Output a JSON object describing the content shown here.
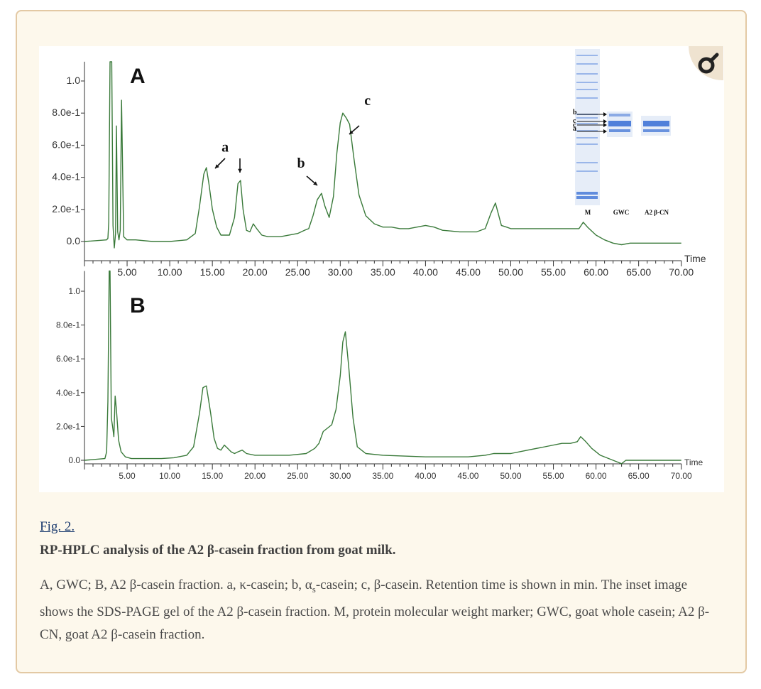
{
  "figure_label": "Fig. 2.",
  "figure_title": "RP-HPLC analysis of the A2 β-casein fraction from goat milk.",
  "caption": {
    "part1": "A, GWC; B, A2 β-casein fraction. a, κ-casein; b, α",
    "sub": "s",
    "part2": "-casein; c, β-casein. Retention time is shown in min. The inset image shows the SDS-PAGE gel of the A2 β-casein fraction. M, protein molecular weight marker; GWC, goat whole casein; A2 β-CN, goat A2 β-casein fraction."
  },
  "zoom_button": {
    "icon": "magnifier-icon"
  },
  "colors": {
    "trace": "#3a7a3a",
    "gel_band": "#3f73d6",
    "gel_bg": "#e6edf8"
  },
  "chart_data": [
    {
      "type": "line",
      "panel_label": "A",
      "xlabel": "Time",
      "xlim": [
        0,
        70
      ],
      "ylim": [
        -0.05,
        1.12
      ],
      "x_ticks": [
        5,
        10,
        15,
        20,
        25,
        30,
        35,
        40,
        45,
        50,
        55,
        60,
        65,
        70
      ],
      "x_tick_labels": [
        "5.00",
        "10.00",
        "15.00",
        "20.00",
        "25.00",
        "30.00",
        "35.00",
        "40.00",
        "45.00",
        "50.00",
        "55.00",
        "60.00",
        "65.00",
        "70.00"
      ],
      "y_ticks": [
        0,
        0.2,
        0.4,
        0.6,
        0.8,
        1.0
      ],
      "y_tick_labels": [
        "0.0",
        "2.0e-1",
        "4.0e-1",
        "6.0e-1",
        "8.0e-1",
        "1.0"
      ],
      "series": [
        {
          "x": [
            0,
            2.6,
            2.75,
            2.85,
            3.0,
            3.2,
            3.35,
            3.5,
            3.65,
            3.75,
            3.9,
            4.05,
            4.2,
            4.35,
            4.6,
            5,
            6,
            8,
            10,
            12,
            13,
            13.5,
            14,
            14.3,
            14.6,
            15,
            15.5,
            16,
            17,
            17.6,
            18,
            18.3,
            18.6,
            19,
            19.4,
            19.8,
            20.2,
            20.8,
            21.5,
            23,
            25,
            25.8,
            26.3,
            26.8,
            27.3,
            27.8,
            28.2,
            28.7,
            29.2,
            29.6,
            30,
            30.3,
            30.7,
            31.1,
            31.6,
            32.2,
            33,
            34,
            35,
            36,
            37,
            38,
            40,
            41,
            42,
            44,
            46,
            47,
            47.7,
            48.2,
            48.5,
            48.9,
            49.5,
            50,
            52,
            55,
            57,
            58,
            58.5,
            59,
            60,
            61,
            62,
            63,
            64,
            65,
            67,
            70
          ],
          "y": [
            0,
            0.01,
            0.02,
            0.12,
            1.12,
            1.12,
            0.1,
            -0.04,
            0.05,
            0.72,
            0.06,
            0.01,
            0.07,
            0.88,
            0.03,
            0.01,
            0.01,
            0,
            0,
            0.01,
            0.05,
            0.22,
            0.42,
            0.46,
            0.36,
            0.2,
            0.09,
            0.04,
            0.04,
            0.15,
            0.36,
            0.38,
            0.2,
            0.07,
            0.06,
            0.11,
            0.08,
            0.04,
            0.03,
            0.03,
            0.05,
            0.07,
            0.08,
            0.16,
            0.26,
            0.3,
            0.22,
            0.15,
            0.28,
            0.55,
            0.74,
            0.8,
            0.77,
            0.73,
            0.52,
            0.29,
            0.16,
            0.11,
            0.09,
            0.09,
            0.08,
            0.08,
            0.1,
            0.09,
            0.07,
            0.06,
            0.06,
            0.08,
            0.18,
            0.24,
            0.18,
            0.1,
            0.09,
            0.08,
            0.08,
            0.08,
            0.08,
            0.08,
            0.12,
            0.09,
            0.04,
            0.01,
            -0.01,
            -0.02,
            -0.01,
            -0.01,
            -0.01,
            -0.01
          ]
        }
      ],
      "annotations": [
        {
          "text": "a",
          "x": 16.5,
          "y": 0.56
        },
        {
          "text": "b",
          "x": 25.4,
          "y": 0.46
        },
        {
          "text": "c",
          "x": 33.2,
          "y": 0.85
        }
      ],
      "inset": {
        "type": "gel",
        "lanes": [
          "M",
          "GWC",
          "A2 β-CN"
        ],
        "band_labels": [
          "b",
          "c",
          "c",
          "a"
        ]
      }
    },
    {
      "type": "line",
      "panel_label": "B",
      "xlabel": "Time",
      "xlim": [
        0,
        70
      ],
      "ylim": [
        -0.05,
        1.12
      ],
      "x_ticks": [
        5,
        10,
        15,
        20,
        25,
        30,
        35,
        40,
        45,
        50,
        55,
        60,
        65,
        70
      ],
      "x_tick_labels": [
        "5.00",
        "10.00",
        "15.00",
        "20.00",
        "25.00",
        "30.00",
        "35.00",
        "40.00",
        "45.00",
        "50.00",
        "55.00",
        "60.00",
        "65.00",
        "70.00"
      ],
      "y_ticks": [
        0,
        0.2,
        0.4,
        0.6,
        0.8,
        1.0
      ],
      "y_tick_labels": [
        "0.0",
        "2.0e-1",
        "4.0e-1",
        "6.0e-1",
        "8.0e-1",
        "1.0"
      ],
      "series": [
        {
          "x": [
            0,
            2.4,
            2.6,
            2.75,
            2.9,
            3.0,
            3.15,
            3.3,
            3.45,
            3.6,
            3.75,
            4.0,
            4.3,
            4.8,
            5.5,
            7,
            9,
            10.5,
            12,
            12.8,
            13.5,
            13.9,
            14.3,
            14.8,
            15.2,
            15.6,
            16,
            16.4,
            16.8,
            17.2,
            17.6,
            18.0,
            18.5,
            19,
            20,
            22,
            24,
            26,
            27,
            27.5,
            28,
            29,
            29.5,
            30,
            30.3,
            30.6,
            31,
            31.5,
            32,
            33,
            35,
            40,
            45,
            47,
            48,
            50,
            52,
            54,
            56,
            57,
            57.8,
            58.2,
            58.8,
            59.5,
            60.5,
            61.5,
            62.5,
            63,
            63.5,
            64,
            67,
            70
          ],
          "y": [
            0,
            0.01,
            0.05,
            0.35,
            1.12,
            1.12,
            0.25,
            0.2,
            0.14,
            0.38,
            0.3,
            0.12,
            0.05,
            0.02,
            0.01,
            0.01,
            0.01,
            0.015,
            0.03,
            0.08,
            0.28,
            0.43,
            0.44,
            0.28,
            0.13,
            0.07,
            0.06,
            0.09,
            0.07,
            0.05,
            0.04,
            0.05,
            0.06,
            0.04,
            0.03,
            0.03,
            0.03,
            0.04,
            0.07,
            0.1,
            0.17,
            0.21,
            0.3,
            0.5,
            0.7,
            0.76,
            0.55,
            0.25,
            0.08,
            0.04,
            0.03,
            0.02,
            0.02,
            0.03,
            0.04,
            0.04,
            0.06,
            0.08,
            0.1,
            0.1,
            0.11,
            0.14,
            0.11,
            0.07,
            0.03,
            0.01,
            -0.01,
            -0.02,
            0,
            0,
            0,
            0
          ]
        }
      ]
    }
  ]
}
